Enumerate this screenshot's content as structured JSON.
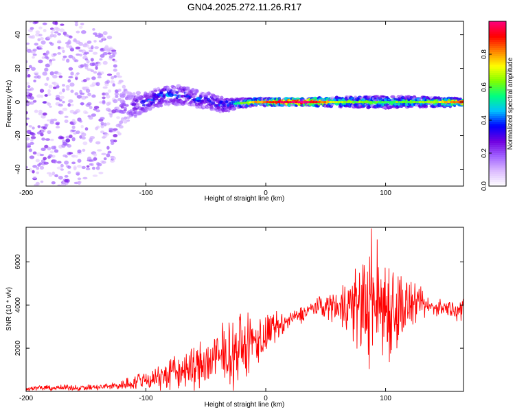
{
  "title": "GN04.2025.272.11.26.R17",
  "chart_data": [
    {
      "type": "heatmap",
      "xlabel": "Height of straight line (km)",
      "ylabel": "Frequency (Hz)",
      "xlim": [
        -200,
        165
      ],
      "ylim": [
        -50,
        48
      ],
      "x_ticks": [
        -200,
        -100,
        0,
        100
      ],
      "y_ticks": [
        -40,
        -20,
        0,
        20,
        40
      ],
      "x_tick_labels": [
        "-200",
        "-100",
        "0",
        "100"
      ],
      "y_tick_labels": [
        "-40",
        "-20",
        "0",
        "20",
        "40"
      ],
      "colorbar": {
        "label": "Normalized spectral amplitude",
        "range": [
          0,
          1
        ],
        "ticks": [
          0.0,
          0.2,
          0.4,
          0.6,
          0.8
        ],
        "tick_labels": [
          "0.0",
          "0.2",
          "0.4",
          "0.6",
          "0.8"
        ],
        "colors": [
          "#ffffff",
          "#dcbcff",
          "#a060ff",
          "#7000e0",
          "#0000ff",
          "#00c0ff",
          "#00ff80",
          "#80ff00",
          "#ffff00",
          "#ff8000",
          "#ff0000",
          "#ff0080"
        ]
      },
      "signal_track": [
        {
          "x": -200,
          "f": 0,
          "spread": 50,
          "amp": 0.22
        },
        {
          "x": -160,
          "f": 0,
          "spread": 50,
          "amp": 0.2
        },
        {
          "x": -130,
          "f": 0,
          "spread": 40,
          "amp": 0.18
        },
        {
          "x": -115,
          "f": -3,
          "spread": 12,
          "amp": 0.25
        },
        {
          "x": -100,
          "f": 0,
          "spread": 8,
          "amp": 0.35
        },
        {
          "x": -85,
          "f": 4,
          "spread": 8,
          "amp": 0.4
        },
        {
          "x": -70,
          "f": 4,
          "spread": 8,
          "amp": 0.38
        },
        {
          "x": -50,
          "f": 1,
          "spread": 7,
          "amp": 0.38
        },
        {
          "x": -35,
          "f": -2,
          "spread": 6,
          "amp": 0.4
        },
        {
          "x": -25,
          "f": -1,
          "spread": 4,
          "amp": 0.5
        },
        {
          "x": -10,
          "f": 0,
          "spread": 3,
          "amp": 0.7
        },
        {
          "x": 10,
          "f": 0,
          "spread": 3,
          "amp": 0.9
        },
        {
          "x": 35,
          "f": 0,
          "spread": 3,
          "amp": 0.95
        },
        {
          "x": 60,
          "f": 0,
          "spread": 4,
          "amp": 0.6
        },
        {
          "x": 100,
          "f": 0,
          "spread": 5,
          "amp": 0.55
        },
        {
          "x": 140,
          "f": 0,
          "spread": 4,
          "amp": 0.6
        },
        {
          "x": 165,
          "f": 0,
          "spread": 3,
          "amp": 0.85
        }
      ]
    },
    {
      "type": "line",
      "xlabel": "Height of straight line (km)",
      "ylabel": "SNR (10 * v/v)",
      "xlim": [
        -200,
        165
      ],
      "ylim": [
        0,
        7600
      ],
      "x_ticks": [
        -200,
        -100,
        0,
        100
      ],
      "y_ticks": [
        2000,
        4000,
        6000
      ],
      "x_tick_labels": [
        "-200",
        "-100",
        "0",
        "100"
      ],
      "y_tick_labels": [
        "2000",
        "4000",
        "6000"
      ],
      "color": "#ff0000",
      "series_envelope": [
        {
          "x": -200,
          "mean": 150,
          "noise": 100
        },
        {
          "x": -140,
          "mean": 180,
          "noise": 120
        },
        {
          "x": -120,
          "mean": 300,
          "noise": 200
        },
        {
          "x": -100,
          "mean": 550,
          "noise": 400
        },
        {
          "x": -80,
          "mean": 800,
          "noise": 700
        },
        {
          "x": -60,
          "mean": 1100,
          "noise": 900
        },
        {
          "x": -40,
          "mean": 1500,
          "noise": 1200
        },
        {
          "x": -20,
          "mean": 2000,
          "noise": 1300
        },
        {
          "x": 0,
          "mean": 2600,
          "noise": 900
        },
        {
          "x": 20,
          "mean": 3300,
          "noise": 300
        },
        {
          "x": 40,
          "mean": 3900,
          "noise": 300
        },
        {
          "x": 60,
          "mean": 4000,
          "noise": 700
        },
        {
          "x": 80,
          "mean": 4000,
          "noise": 2000
        },
        {
          "x": 95,
          "mean": 4100,
          "noise": 2600
        },
        {
          "x": 110,
          "mean": 3900,
          "noise": 1800
        },
        {
          "x": 125,
          "mean": 4000,
          "noise": 700
        },
        {
          "x": 140,
          "mean": 3900,
          "noise": 300
        },
        {
          "x": 165,
          "mean": 3800,
          "noise": 400
        }
      ]
    }
  ]
}
